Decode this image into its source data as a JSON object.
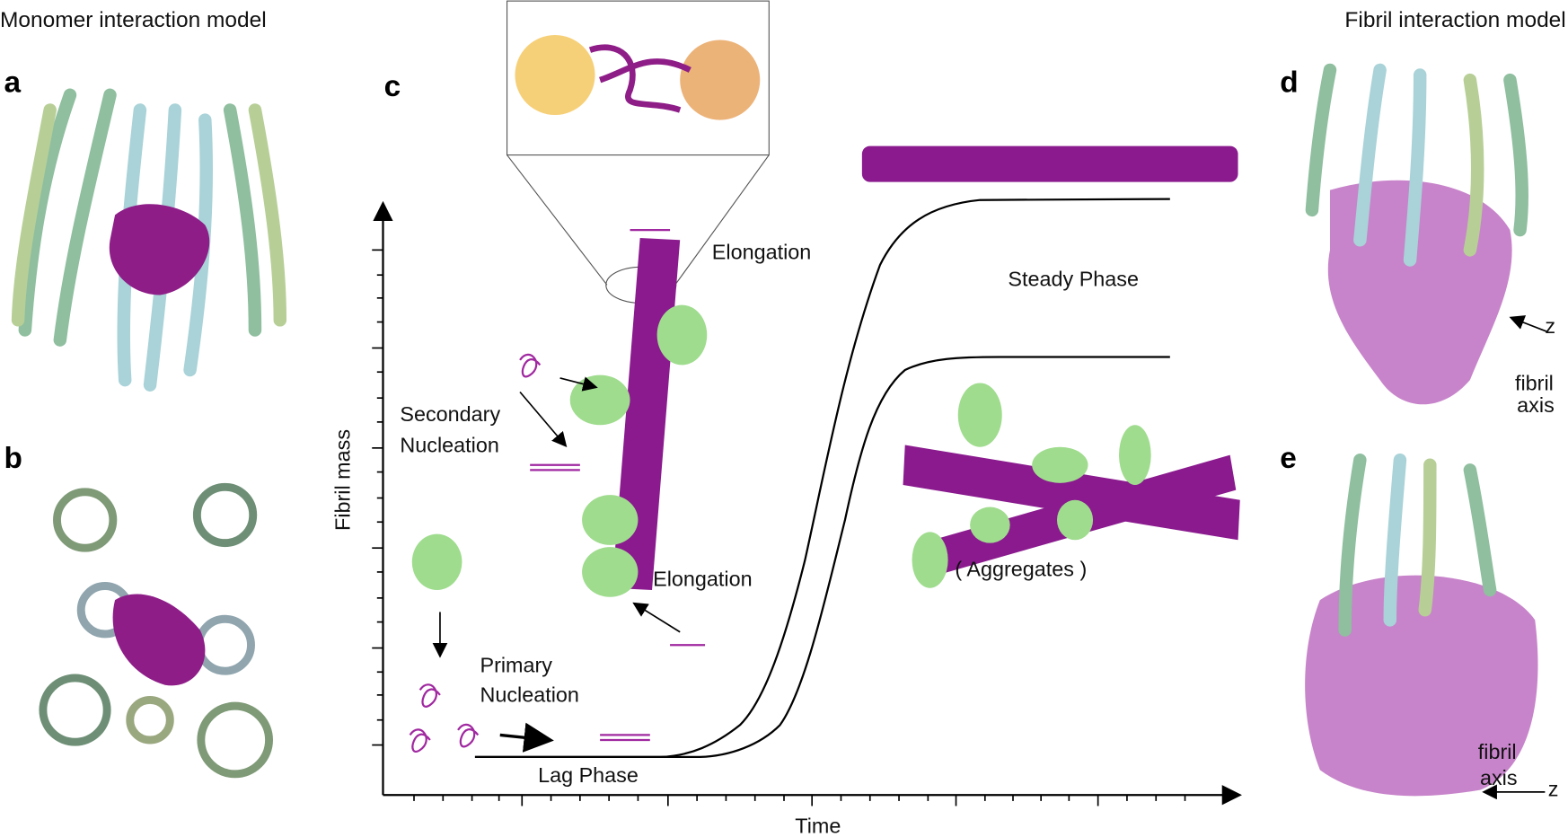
{
  "header": {
    "left_title": "Monomer interaction model",
    "right_title": "Fibril interaction model"
  },
  "panels": {
    "a": {
      "label": "a"
    },
    "b": {
      "label": "b"
    },
    "c": {
      "label": "c",
      "y_axis_label": "Fibril mass",
      "x_axis_label": "Time",
      "elongation_top": "Elongation",
      "steady_phase": "Steady Phase",
      "secondary_nucleation": [
        "Secondary",
        "Nucleation"
      ],
      "elongation_bottom": "Elongation",
      "aggregates": "( Aggregates )",
      "primary_nucleation": [
        "Primary",
        "Nucleation"
      ],
      "lag_phase": "Lag Phase"
    },
    "d": {
      "label": "d",
      "z": "z",
      "fibril_axis": [
        "fibril",
        "axis"
      ]
    },
    "e": {
      "label": "e",
      "z": "z",
      "fibril_axis": [
        "fibril",
        "axis"
      ]
    }
  }
}
